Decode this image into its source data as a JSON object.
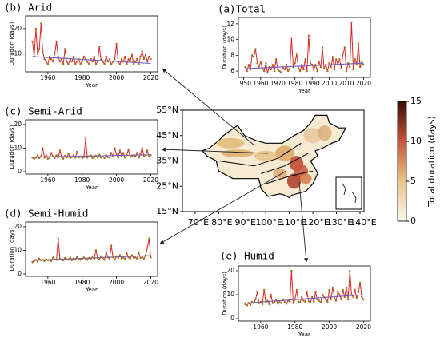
{
  "chart_data": [
    {
      "type": "line",
      "title": "(a)Total",
      "xlabel": "Year",
      "ylabel": "Duration (days)",
      "x": [
        1951,
        1952,
        1953,
        1954,
        1955,
        1956,
        1957,
        1958,
        1959,
        1960,
        1961,
        1962,
        1963,
        1964,
        1965,
        1966,
        1967,
        1968,
        1969,
        1970,
        1971,
        1972,
        1973,
        1974,
        1975,
        1976,
        1977,
        1978,
        1979,
        1980,
        1981,
        1982,
        1983,
        1984,
        1985,
        1986,
        1987,
        1988,
        1989,
        1990,
        1991,
        1992,
        1993,
        1994,
        1995,
        1996,
        1997,
        1998,
        1999,
        2000,
        2001,
        2002,
        2003,
        2004,
        2005,
        2006,
        2007,
        2008,
        2009,
        2010,
        2011,
        2012,
        2013,
        2014,
        2015,
        2016,
        2017,
        2018,
        2019,
        2020
      ],
      "values": [
        6.5,
        6,
        6.8,
        6.2,
        8,
        7.8,
        8.8,
        7,
        6.5,
        7.2,
        6.3,
        6,
        7,
        5.8,
        6.5,
        6.2,
        6.8,
        6,
        7.5,
        6.2,
        6,
        5.8,
        6.5,
        6.2,
        6.8,
        6,
        6.3,
        10.2,
        6.5,
        7,
        8.2,
        6.4,
        6,
        6.8,
        6.2,
        7.5,
        6,
        10.5,
        7,
        6.8,
        6.2,
        6.8,
        6,
        7.2,
        6.5,
        9,
        6.3,
        6.8,
        6,
        7,
        6.5,
        7.8,
        6.2,
        7.5,
        6.8,
        7.5,
        6.4,
        8.2,
        9,
        6,
        7,
        6.5,
        12.2,
        6.2,
        7.5,
        6.8,
        9.5,
        6.5,
        7.2,
        6.8
      ],
      "trend": {
        "x": [
          1951,
          2020
        ],
        "values": [
          6.3,
          7.0
        ],
        "color": "#6a5acd"
      },
      "color": "#d62728",
      "marker_color": "#a0701a",
      "xlim": [
        1947,
        2024
      ],
      "xticks": [
        1950,
        1960,
        1970,
        1980,
        1990,
        2000,
        2010,
        2020
      ],
      "ylim": [
        5.2,
        12.8
      ],
      "yticks": [
        6,
        8,
        10,
        12
      ]
    },
    {
      "type": "line",
      "title": "(b) Arid",
      "xlabel": "Year",
      "ylabel": "Duration (days)",
      "x": [
        1951,
        1952,
        1953,
        1954,
        1955,
        1956,
        1957,
        1958,
        1959,
        1960,
        1961,
        1962,
        1963,
        1964,
        1965,
        1966,
        1967,
        1968,
        1969,
        1970,
        1971,
        1972,
        1973,
        1974,
        1975,
        1976,
        1977,
        1978,
        1979,
        1980,
        1981,
        1982,
        1983,
        1984,
        1985,
        1986,
        1987,
        1988,
        1989,
        1990,
        1991,
        1992,
        1993,
        1994,
        1995,
        1996,
        1997,
        1998,
        1999,
        2000,
        2001,
        2002,
        2003,
        2004,
        2005,
        2006,
        2007,
        2008,
        2009,
        2010,
        2011,
        2012,
        2013,
        2014,
        2015,
        2016,
        2017,
        2018,
        2019,
        2020
      ],
      "values": [
        15,
        9,
        20,
        10,
        12,
        22,
        11,
        8,
        7,
        6,
        9,
        8,
        7,
        10,
        15,
        9,
        7,
        8,
        6,
        12,
        7,
        6,
        8,
        7,
        9,
        6,
        7,
        8,
        6,
        7,
        9,
        8,
        7,
        6,
        8,
        7,
        9,
        6,
        7,
        13,
        8,
        7,
        6,
        9,
        7,
        8,
        6,
        7,
        8,
        14,
        7,
        6,
        8,
        7,
        9,
        6,
        8,
        7,
        10,
        6,
        7,
        8,
        6,
        9,
        11,
        8,
        10,
        7,
        9,
        8
      ],
      "trend": {
        "x": [
          1951,
          2020
        ],
        "values": [
          9,
          6.3
        ],
        "color": "#6a5acd"
      },
      "color": "#d62728",
      "marker_color": "#a0701a",
      "xlim": [
        1947,
        2024
      ],
      "xticks": [
        1960,
        1980,
        2000,
        2020
      ],
      "ylim": [
        3,
        25
      ],
      "yticks": [
        10,
        20
      ]
    },
    {
      "type": "line",
      "title": "(c) Semi-Arid",
      "xlabel": "Year",
      "ylabel": "Duration (days)",
      "x": [
        1951,
        1952,
        1953,
        1954,
        1955,
        1956,
        1957,
        1958,
        1959,
        1960,
        1961,
        1962,
        1963,
        1964,
        1965,
        1966,
        1967,
        1968,
        1969,
        1970,
        1971,
        1972,
        1973,
        1974,
        1975,
        1976,
        1977,
        1978,
        1979,
        1980,
        1981,
        1982,
        1983,
        1984,
        1985,
        1986,
        1987,
        1988,
        1989,
        1990,
        1991,
        1992,
        1993,
        1994,
        1995,
        1996,
        1997,
        1998,
        1999,
        2000,
        2001,
        2002,
        2003,
        2004,
        2005,
        2006,
        2007,
        2008,
        2009,
        2010,
        2011,
        2012,
        2013,
        2014,
        2015,
        2016,
        2017,
        2018,
        2019,
        2020
      ],
      "values": [
        6,
        5.5,
        6,
        7,
        5.8,
        6.5,
        10,
        6,
        7,
        5.5,
        6,
        8,
        6.5,
        5.8,
        7,
        6,
        9,
        6.2,
        5.5,
        6.8,
        6,
        7.5,
        5.8,
        6.2,
        7,
        6,
        8.5,
        6,
        6.5,
        5.8,
        6.2,
        14,
        6,
        6.5,
        7,
        5.8,
        6.2,
        6.8,
        6,
        7.2,
        6,
        6.5,
        5.8,
        7,
        6.2,
        6,
        8,
        6.5,
        10,
        7.5,
        6,
        9,
        6.5,
        8,
        6,
        7,
        9.5,
        6.2,
        6.8,
        7,
        6.5,
        8,
        6,
        7.5,
        10,
        6.8,
        7,
        9,
        6.5,
        7
      ],
      "trend": {
        "x": [
          1951,
          2020
        ],
        "values": [
          6.2,
          7.2
        ],
        "color": "#6a5acd"
      },
      "color": "#d62728",
      "marker_color": "#a0701a",
      "xlim": [
        1947,
        2024
      ],
      "xticks": [
        1960,
        1980,
        2000,
        2020
      ],
      "ylim": [
        -1,
        22
      ],
      "yticks": [
        0,
        10,
        20
      ]
    },
    {
      "type": "line",
      "title": "(d) Semi-Humid",
      "xlabel": "Year",
      "ylabel": "Duration (days)",
      "x": [
        1951,
        1952,
        1953,
        1954,
        1955,
        1956,
        1957,
        1958,
        1959,
        1960,
        1961,
        1962,
        1963,
        1964,
        1965,
        1966,
        1967,
        1968,
        1969,
        1970,
        1971,
        1972,
        1973,
        1974,
        1975,
        1976,
        1977,
        1978,
        1979,
        1980,
        1981,
        1982,
        1983,
        1984,
        1985,
        1986,
        1987,
        1988,
        1989,
        1990,
        1991,
        1992,
        1993,
        1994,
        1995,
        1996,
        1997,
        1998,
        1999,
        2000,
        2001,
        2002,
        2003,
        2004,
        2005,
        2006,
        2007,
        2008,
        2009,
        2010,
        2011,
        2012,
        2013,
        2014,
        2015,
        2016,
        2017,
        2018,
        2019,
        2020
      ],
      "values": [
        5,
        5.5,
        6,
        5.2,
        6.5,
        5.8,
        6,
        5.5,
        6.2,
        5.8,
        6,
        5.5,
        7,
        6.2,
        6,
        15,
        6.5,
        6,
        5.8,
        6.8,
        6.2,
        6,
        7,
        5.8,
        6.5,
        6,
        7.2,
        6.2,
        6,
        6.5,
        7,
        6.2,
        6,
        6.8,
        6.2,
        7,
        6.5,
        10,
        6.8,
        6.2,
        7.5,
        6.8,
        6,
        9,
        7,
        6.5,
        12,
        7,
        6.2,
        7.5,
        6.8,
        8,
        6.5,
        7,
        6.2,
        9,
        7,
        6.5,
        8,
        6.8,
        7,
        6.5,
        9,
        6.8,
        7.2,
        6.5,
        8,
        11,
        15,
        7
      ],
      "trend": {
        "x": [
          1951,
          2020
        ],
        "values": [
          5.8,
          7.8
        ],
        "color": "#6a5acd"
      },
      "color": "#d62728",
      "marker_color": "#a0701a",
      "xlim": [
        1947,
        2024
      ],
      "xticks": [
        1960,
        1980,
        2000,
        2020
      ],
      "ylim": [
        -1,
        22
      ],
      "yticks": [
        0,
        10,
        20
      ]
    },
    {
      "type": "line",
      "title": "(e) Humid",
      "xlabel": "Year",
      "ylabel": "Duration (days)",
      "x": [
        1951,
        1952,
        1953,
        1954,
        1955,
        1956,
        1957,
        1958,
        1959,
        1960,
        1961,
        1962,
        1963,
        1964,
        1965,
        1966,
        1967,
        1968,
        1969,
        1970,
        1971,
        1972,
        1973,
        1974,
        1975,
        1976,
        1977,
        1978,
        1979,
        1980,
        1981,
        1982,
        1983,
        1984,
        1985,
        1986,
        1987,
        1988,
        1989,
        1990,
        1991,
        1992,
        1993,
        1994,
        1995,
        1996,
        1997,
        1998,
        1999,
        2000,
        2001,
        2002,
        2003,
        2004,
        2005,
        2006,
        2007,
        2008,
        2009,
        2010,
        2011,
        2012,
        2013,
        2014,
        2015,
        2016,
        2017,
        2018,
        2019,
        2020
      ],
      "values": [
        6,
        5.5,
        6.5,
        5.8,
        7,
        6.5,
        8,
        11,
        6.5,
        7,
        6,
        12,
        6.8,
        7.5,
        6,
        10,
        6.5,
        7,
        8,
        6.2,
        7,
        6.5,
        8,
        6.8,
        6.2,
        7.5,
        7,
        20,
        6.5,
        8,
        12,
        7,
        6.8,
        9,
        7.5,
        7,
        11,
        7.2,
        6.8,
        9,
        7,
        11,
        8,
        7.5,
        6.8,
        10,
        9,
        8,
        7,
        12,
        8,
        13,
        9,
        7.5,
        11,
        10,
        8,
        12,
        9,
        13,
        8,
        20,
        10,
        9,
        12,
        8.5,
        11,
        15,
        9,
        8
      ],
      "trend": {
        "x": [
          1951,
          2020
        ],
        "values": [
          6.5,
          10
        ],
        "color": "#6a5acd"
      },
      "color": "#d62728",
      "marker_color": "#a0701a",
      "xlim": [
        1947,
        2024
      ],
      "xticks": [
        1960,
        1980,
        2000,
        2020
      ],
      "ylim": [
        -1,
        22
      ],
      "yticks": [
        0,
        10,
        20
      ]
    },
    {
      "type": "map",
      "xlim": [
        64.6,
        141.7
      ],
      "xticks": [
        {
          "value": 70,
          "label": "70°E"
        },
        {
          "value": 80,
          "label": "80°E"
        },
        {
          "value": 90,
          "label": "90°E"
        },
        {
          "value": 100,
          "label": "100°E"
        },
        {
          "value": 110,
          "label": "110°E"
        },
        {
          "value": 120,
          "label": "120°E"
        },
        {
          "value": 130,
          "label": "130°E"
        },
        {
          "value": 140,
          "label": "140°E"
        }
      ],
      "ylim": [
        15,
        55
      ],
      "yticks": [
        {
          "value": 15,
          "label": "15°N"
        },
        {
          "value": 25,
          "label": "25°N"
        },
        {
          "value": 35,
          "label": "35°N"
        },
        {
          "value": 45,
          "label": "45°N"
        },
        {
          "value": 55,
          "label": "55°N"
        }
      ],
      "colorbar_label": "Total duration (days)",
      "clim": [
        0,
        15
      ],
      "cticks": [
        0,
        5,
        10,
        15
      ],
      "colors": [
        "#fdf6ec",
        "#e9c48a",
        "#c8553a",
        "#3a0a05"
      ]
    }
  ]
}
